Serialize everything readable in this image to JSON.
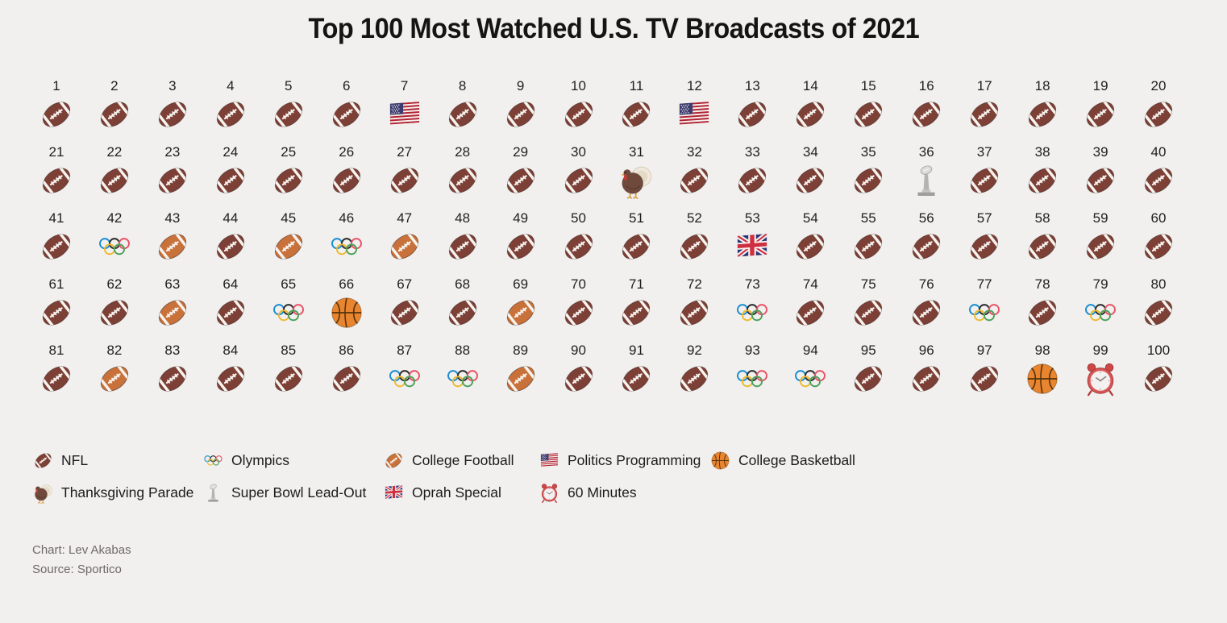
{
  "title": "Top 100 Most Watched U.S. TV Broadcasts of 2021",
  "colors": {
    "background": "#f1f0ee",
    "title_text": "#141414",
    "body_text": "#1c1c1c",
    "credit_text": "#6f6a66",
    "nfl_football_brown": "#7d4037",
    "college_football_orange": "#c9713a",
    "basketball_orange": "#e8852e",
    "alarm_clock_red": "#d85555",
    "trophy_silver": "#c0c0c0",
    "olympic_blue": "#1b8dd1",
    "olympic_black": "#2b2b2b",
    "olympic_red": "#ea5267",
    "olympic_yellow": "#edb92e",
    "olympic_green": "#4ba15a"
  },
  "category_icons": {
    "NFL": "football-dark-icon",
    "Olympics": "olympic-rings-icon",
    "College Football": "football-orange-icon",
    "Politics Programming": "us-flag-icon",
    "College Basketball": "basketball-icon",
    "Thanksgiving Parade": "turkey-icon",
    "Super Bowl Lead-Out": "trophy-icon",
    "Oprah Special": "uk-flag-icon",
    "60 Minutes": "alarm-clock-icon"
  },
  "legend": {
    "rows": [
      [
        "NFL",
        "Olympics",
        "College Football",
        "Politics Programming",
        "College Basketball"
      ],
      [
        "Thanksgiving Parade",
        "Super Bowl Lead-Out",
        "Oprah Special",
        "60 Minutes"
      ]
    ]
  },
  "chart_data": {
    "type": "pictogram-grid",
    "title": "Top 100 Most Watched U.S. TV Broadcasts of 2021",
    "rows": 5,
    "cols": 20,
    "ranks_start": 1,
    "ranks_end": 100,
    "rank_categories": [
      "NFL",
      "NFL",
      "NFL",
      "NFL",
      "NFL",
      "NFL",
      "Politics Programming",
      "NFL",
      "NFL",
      "NFL",
      "NFL",
      "Politics Programming",
      "NFL",
      "NFL",
      "NFL",
      "NFL",
      "NFL",
      "NFL",
      "NFL",
      "NFL",
      "NFL",
      "NFL",
      "NFL",
      "NFL",
      "NFL",
      "NFL",
      "NFL",
      "NFL",
      "NFL",
      "NFL",
      "Thanksgiving Parade",
      "NFL",
      "NFL",
      "NFL",
      "NFL",
      "Super Bowl Lead-Out",
      "NFL",
      "NFL",
      "NFL",
      "NFL",
      "NFL",
      "Olympics",
      "College Football",
      "NFL",
      "College Football",
      "Olympics",
      "College Football",
      "NFL",
      "NFL",
      "NFL",
      "NFL",
      "NFL",
      "Oprah Special",
      "NFL",
      "NFL",
      "NFL",
      "NFL",
      "NFL",
      "NFL",
      "NFL",
      "NFL",
      "NFL",
      "College Football",
      "NFL",
      "Olympics",
      "College Basketball",
      "NFL",
      "NFL",
      "College Football",
      "NFL",
      "NFL",
      "NFL",
      "Olympics",
      "NFL",
      "NFL",
      "NFL",
      "Olympics",
      "NFL",
      "Olympics",
      "NFL",
      "NFL",
      "College Football",
      "NFL",
      "NFL",
      "NFL",
      "NFL",
      "Olympics",
      "Olympics",
      "College Football",
      "NFL",
      "NFL",
      "NFL",
      "Olympics",
      "Olympics",
      "NFL",
      "NFL",
      "NFL",
      "College Basketball",
      "60 Minutes",
      "NFL"
    ],
    "category_counts": {
      "NFL": 75,
      "Olympics": 10,
      "College Football": 7,
      "Politics Programming": 2,
      "College Basketball": 2,
      "Thanksgiving Parade": 1,
      "Super Bowl Lead-Out": 1,
      "Oprah Special": 1,
      "60 Minutes": 1
    }
  },
  "credits": {
    "chart_label": "Chart: Lev Akabas",
    "source_label": "Source: Sportico"
  }
}
